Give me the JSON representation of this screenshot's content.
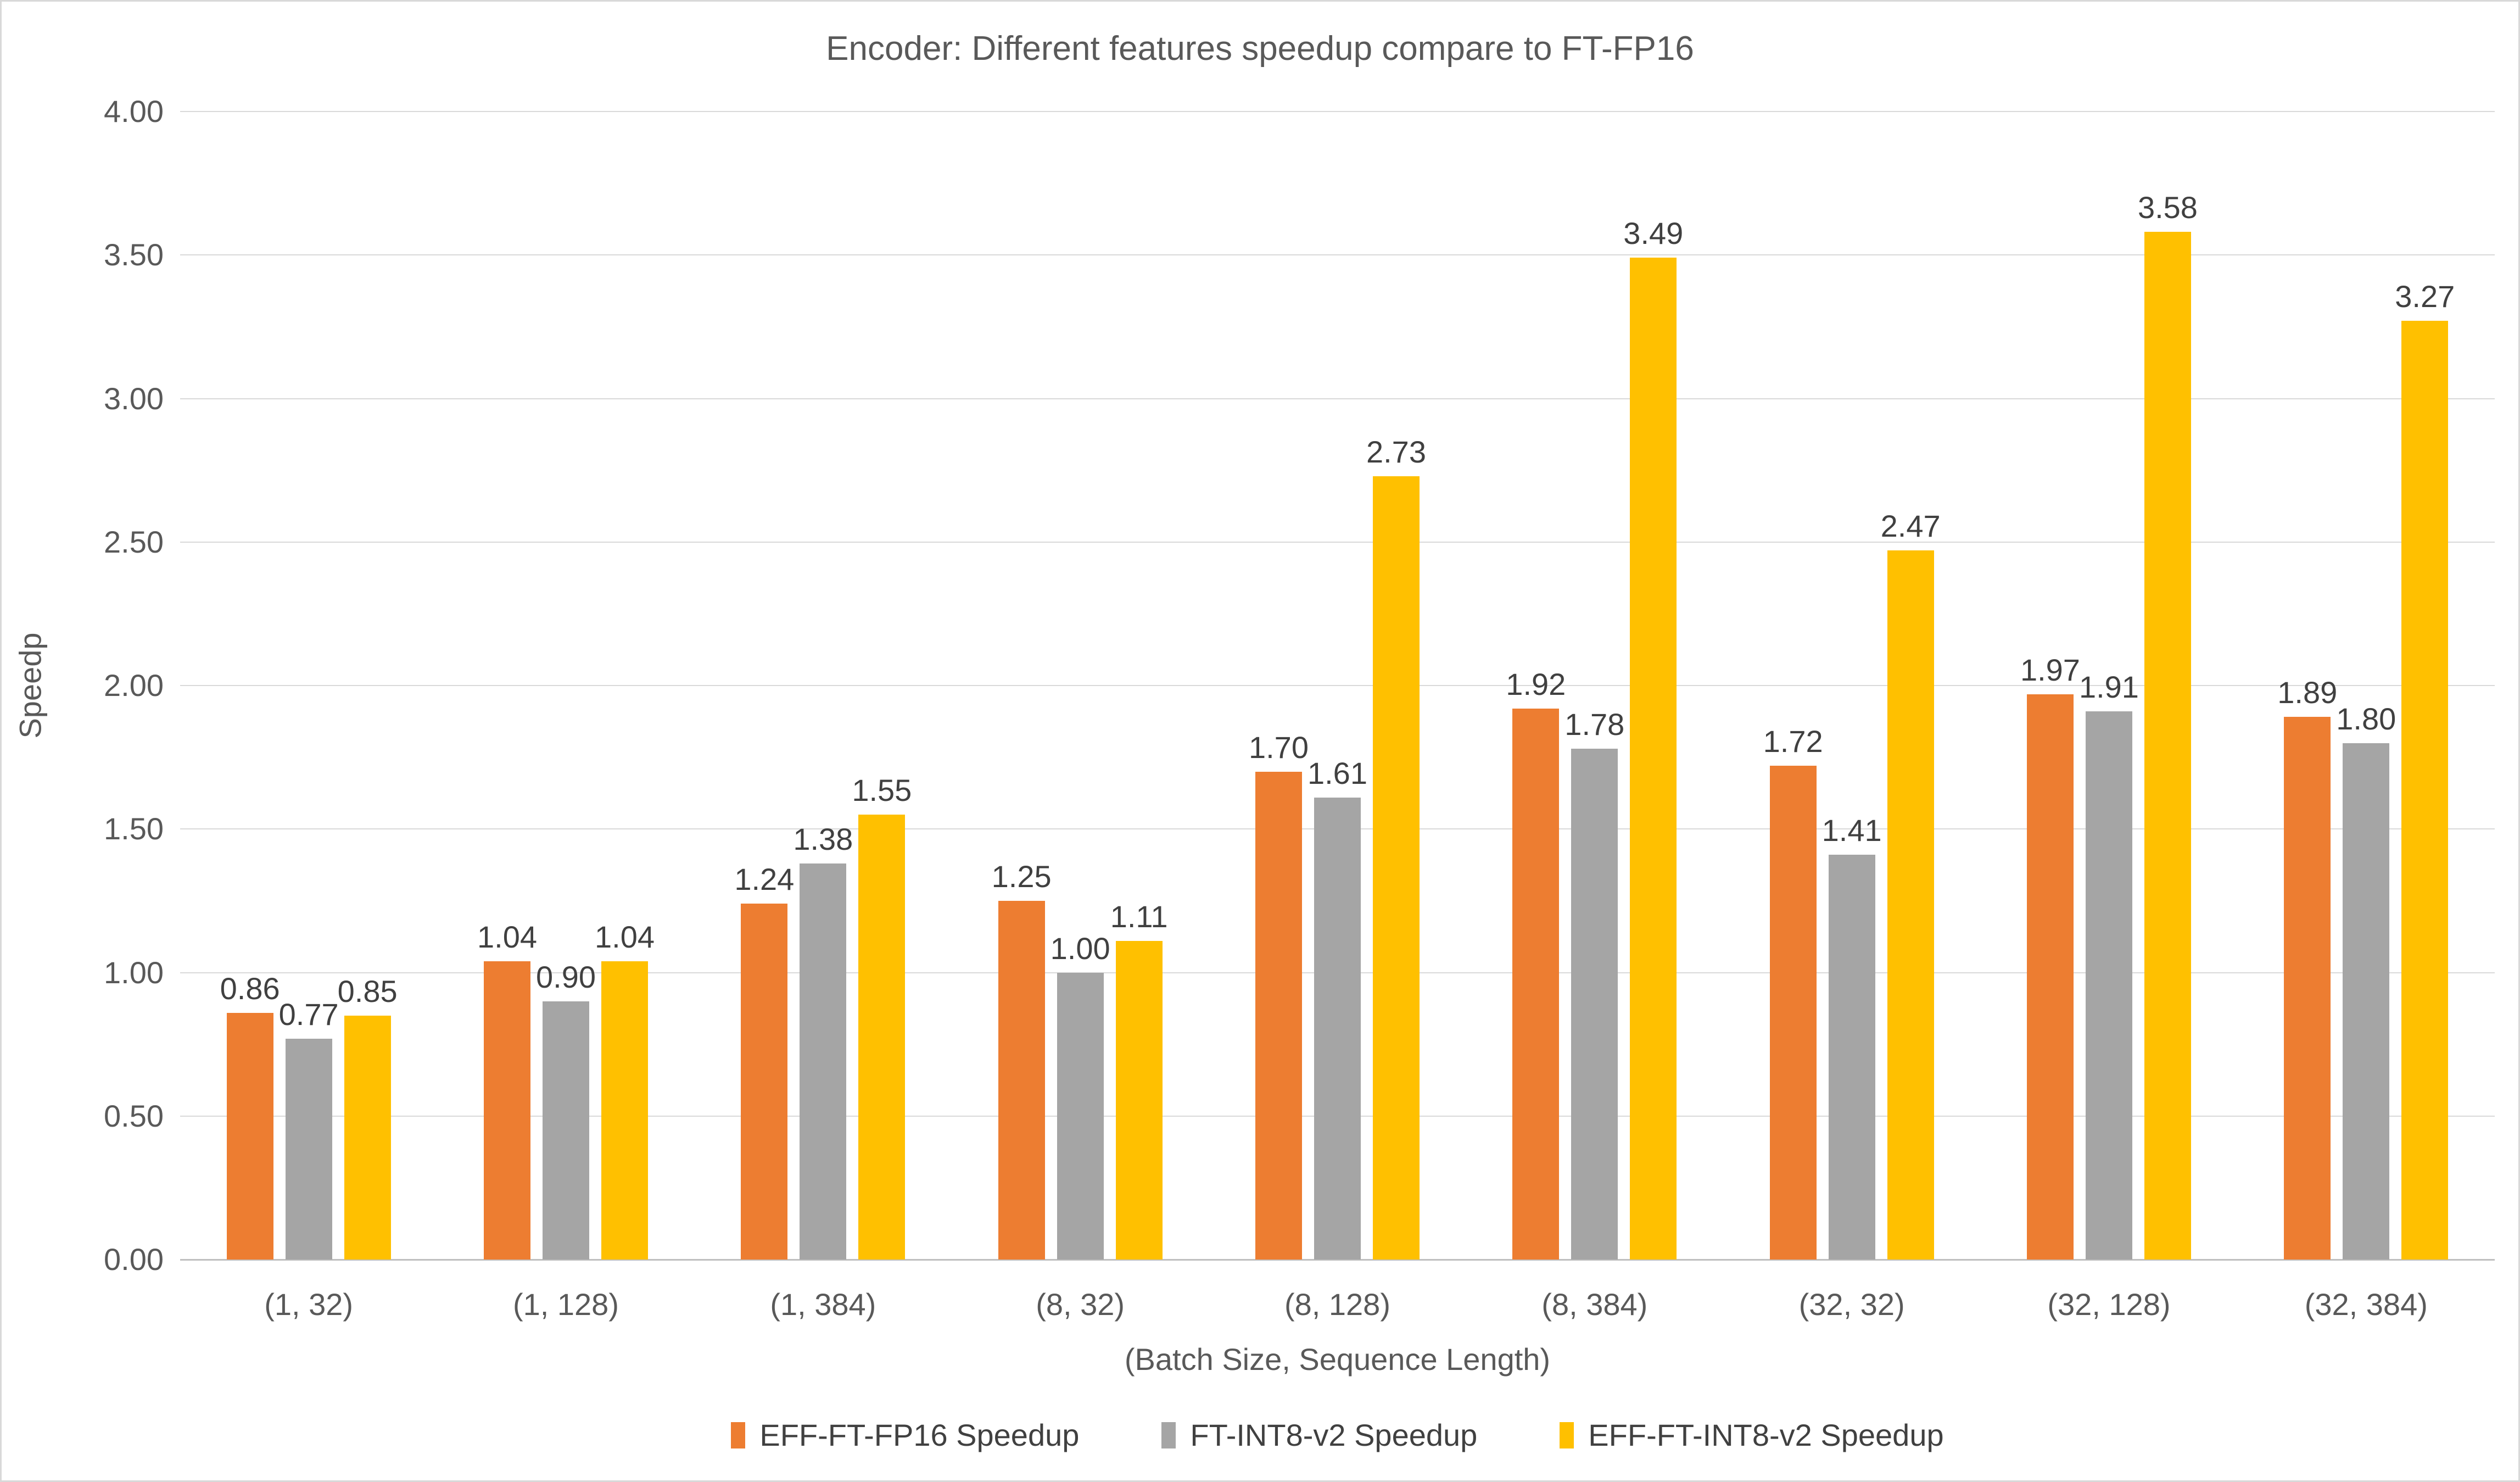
{
  "title": "Encoder: Different features speedup compare to FT-FP16",
  "chart_data": {
    "type": "bar",
    "title": "Encoder: Different features speedup compare to FT-FP16",
    "xlabel": "(Batch Size, Sequence Length)",
    "ylabel": "Speedp",
    "ylim": [
      0,
      4
    ],
    "ytick_step": 0.5,
    "ytick_labels": [
      "4.00",
      "3.50",
      "3.00",
      "2.50",
      "2.00",
      "1.50",
      "1.00",
      "0.50",
      "0.00"
    ],
    "grid": true,
    "value_labels": true,
    "legend_position": "bottom",
    "categories": [
      "(1, 32)",
      "(1, 128)",
      "(1, 384)",
      "(8, 32)",
      "(8, 128)",
      "(8, 384)",
      "(32, 32)",
      "(32, 128)",
      "(32, 384)"
    ],
    "series": [
      {
        "name": "EFF-FT-FP16 Speedup",
        "color": "#ED7D31",
        "values": [
          0.86,
          1.04,
          1.24,
          1.25,
          1.7,
          1.92,
          1.72,
          1.97,
          1.89
        ]
      },
      {
        "name": "FT-INT8-v2 Speedup",
        "color": "#A5A5A5",
        "values": [
          0.77,
          0.9,
          1.38,
          1.0,
          1.61,
          1.78,
          1.41,
          1.91,
          1.8
        ]
      },
      {
        "name": "EFF-FT-INT8-v2 Speedup",
        "color": "#FFC000",
        "values": [
          0.85,
          1.04,
          1.55,
          1.11,
          2.73,
          3.49,
          2.47,
          3.58,
          3.27
        ]
      }
    ],
    "colors": {
      "gridline": "#D9D9D9",
      "axis_line": "#BFBFBF",
      "axis_text": "#595959",
      "data_label_text": "#404040",
      "background": "#FFFFFF"
    }
  }
}
